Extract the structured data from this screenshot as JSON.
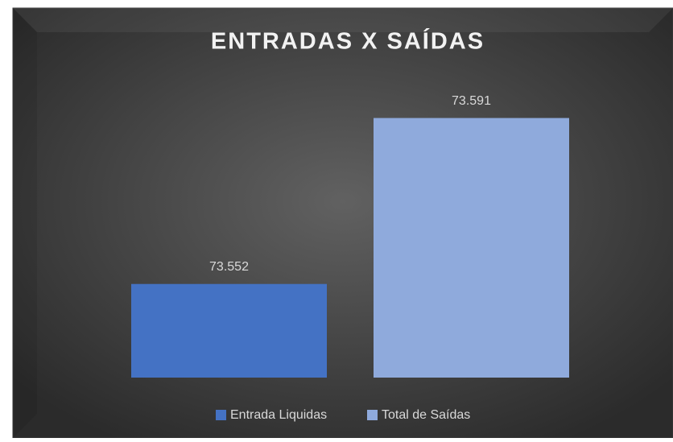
{
  "chart_data": {
    "type": "bar",
    "title": "ENTRADAS X SAÍDAS",
    "categories": [
      null
    ],
    "series": [
      {
        "name": "Entrada Liquidas",
        "color": "#4472c4",
        "values": [
          73552
        ],
        "value_labels": [
          "73.552"
        ]
      },
      {
        "name": "Total de Saídas",
        "color": "#8faadc",
        "values": [
          73591
        ],
        "value_labels": [
          "73.591"
        ]
      }
    ],
    "ylim": [
      73530,
      73600
    ],
    "legend": "bottom"
  }
}
